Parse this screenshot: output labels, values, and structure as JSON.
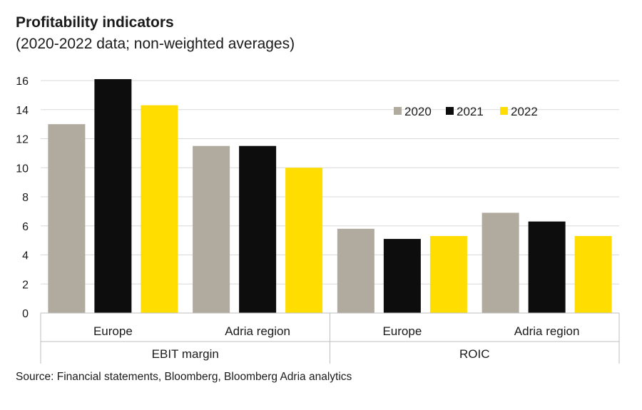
{
  "title": "Profitability indicators",
  "subtitle": "(2020-2022 data; non-weighted averages)",
  "source": "Source: Financial statements, Bloomberg, Bloomberg Adria analytics",
  "chart_data": {
    "type": "bar",
    "groups": [
      "EBIT margin",
      "ROIC"
    ],
    "categories": [
      "Europe",
      "Adria region",
      "Europe",
      "Adria region"
    ],
    "series": [
      {
        "name": "2020",
        "color": "#b0aa9f",
        "values": [
          13.0,
          11.5,
          5.8,
          6.9
        ]
      },
      {
        "name": "2021",
        "color": "#0d0d0d",
        "values": [
          16.1,
          11.5,
          5.1,
          6.3
        ]
      },
      {
        "name": "2022",
        "color": "#ffdd00",
        "values": [
          14.3,
          10.0,
          5.3,
          5.3
        ]
      }
    ],
    "ylim": [
      0,
      16
    ],
    "yticks": [
      0,
      2,
      4,
      6,
      8,
      10,
      12,
      14,
      16
    ],
    "grid": true,
    "legend_position": "top-right"
  }
}
